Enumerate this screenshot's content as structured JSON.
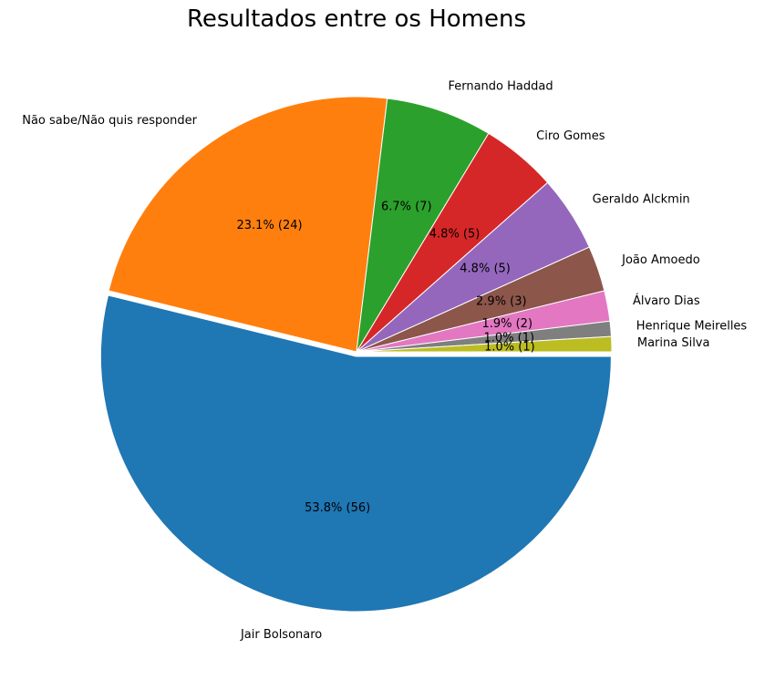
{
  "chart_data": {
    "type": "pie",
    "title": "Resultados entre os Homens",
    "slices": [
      {
        "label": "Jair Bolsonaro",
        "value": 56,
        "pct_label": "53.8%  (56)",
        "color": "#1f77b4"
      },
      {
        "label": "Não sabe/Não quis responder",
        "value": 24,
        "pct_label": "23.1%  (24)",
        "color": "#ff7f0e"
      },
      {
        "label": "Fernando Haddad",
        "value": 7,
        "pct_label": "6.7%  (7)",
        "color": "#2ca02c"
      },
      {
        "label": "Ciro Gomes",
        "value": 5,
        "pct_label": "4.8%  (5)",
        "color": "#d62728"
      },
      {
        "label": "Geraldo Alckmin",
        "value": 5,
        "pct_label": "4.8%  (5)",
        "color": "#9467bd"
      },
      {
        "label": "João Amoedo",
        "value": 3,
        "pct_label": "2.9%  (3)",
        "color": "#8c564b"
      },
      {
        "label": "Álvaro Dias",
        "value": 2,
        "pct_label": "1.9%  (2)",
        "color": "#e377c2"
      },
      {
        "label": "Henrique Meirelles",
        "value": 1,
        "pct_label": "1.0%  (1)",
        "color": "#7f7f7f"
      },
      {
        "label": "Marina Silva",
        "value": 1,
        "pct_label": "1.0%  (1)",
        "color": "#bcbd22"
      }
    ],
    "start_angle": "3 o'clock",
    "direction": "clockwise",
    "exploded_slice": "Jair Bolsonaro",
    "edge_color": "#ffffff"
  }
}
